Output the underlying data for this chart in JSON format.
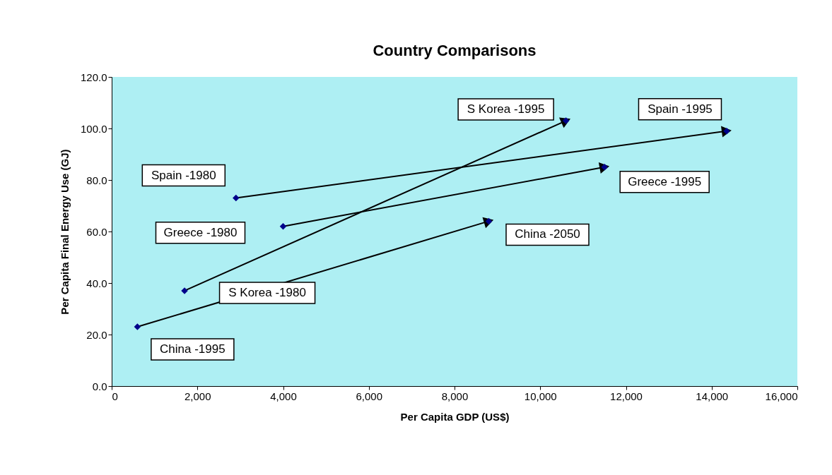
{
  "chart_data": {
    "type": "scatter",
    "title": "Country Comparisons",
    "xlabel": "Per Capita GDP (US$)",
    "ylabel": "Per Capita Final Energy Use (GJ)",
    "xlim": [
      0,
      16000
    ],
    "ylim": [
      0,
      120
    ],
    "xticks": [
      0,
      {
        "value": 2000,
        "label": "2,000"
      },
      {
        "value": 4000,
        "label": "4,000"
      },
      {
        "value": 6000,
        "label": "6,000"
      },
      {
        "value": 8000,
        "label": "8,000"
      },
      {
        "value": 10000,
        "label": "10,000"
      },
      {
        "value": 12000,
        "label": "12,000"
      },
      {
        "value": 14000,
        "label": "14,000"
      },
      {
        "value": 16000,
        "label": "16,000"
      }
    ],
    "yticks": [
      {
        "value": 0,
        "label": "0.0"
      },
      {
        "value": 20,
        "label": "20.0"
      },
      {
        "value": 40,
        "label": "40.0"
      },
      {
        "value": 60,
        "label": "60.0"
      },
      {
        "value": 80,
        "label": "80.0"
      },
      {
        "value": 100,
        "label": "100.0"
      },
      {
        "value": 120,
        "label": "120.0"
      }
    ],
    "marker": "diamond",
    "series": [
      {
        "color": "#00008b",
        "x": [
          600,
          1700,
          2900,
          4000,
          8800,
          10600,
          11500,
          14350
        ],
        "values": [
          23,
          37,
          73,
          62,
          64,
          103,
          85,
          99
        ]
      },
      {
        "type": "line",
        "marker": "triangle",
        "color": "#000000",
        "x": [
          600,
          8800
        ],
        "values": [
          23,
          64
        ]
      },
      {
        "type": "line",
        "marker": "triangle",
        "color": "#000000",
        "x": [
          1700,
          10600
        ],
        "values": [
          37,
          103
        ]
      },
      {
        "type": "line",
        "marker": "triangle",
        "color": "#000000",
        "x": [
          2900,
          14350
        ],
        "values": [
          73,
          99
        ]
      },
      {
        "type": "line",
        "marker": "triangle",
        "color": "#000000",
        "x": [
          4000,
          11500
        ],
        "values": [
          62,
          85
        ]
      }
    ],
    "annotations": [
      {
        "text": "China -1995",
        "x": 600,
        "y": 23
      },
      "S Korea -1980",
      {
        "text": "Spain -1980",
        "x": 2900,
        "y": 73
      },
      "Greece -1980",
      {
        "text": "China -2050",
        "x": 8800,
        "y": 64
      },
      {
        "text": "S Korea -1995",
        "x": 10600,
        "y": 103
      },
      {
        "text": "Greece -1995",
        "x": 11500,
        "y": 85
      },
      {
        "text": "Spain -1995",
        "x": 14350,
        "y": 99
      }
    ]
  }
}
